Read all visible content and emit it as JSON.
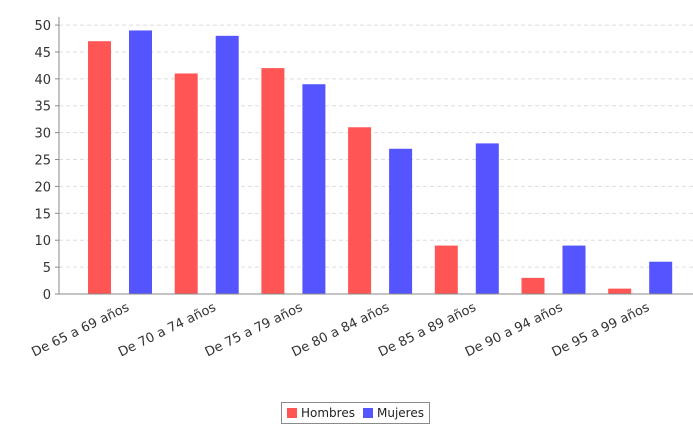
{
  "chart_data": {
    "type": "bar",
    "categories": [
      "De 65 a 69 años",
      "De 70 a 74 años",
      "De 75 a 79 años",
      "De 80 a 84 años",
      "De 85 a 89 años",
      "De 90 a 94 años",
      "De 95 a 99 años"
    ],
    "series": [
      {
        "name": "Hombres",
        "color": "#ff5555",
        "values": [
          47,
          41,
          42,
          31,
          9,
          3,
          1
        ]
      },
      {
        "name": "Mujeres",
        "color": "#5555ff",
        "values": [
          49,
          48,
          39,
          27,
          28,
          9,
          6
        ]
      }
    ],
    "yticks": [
      0,
      5,
      10,
      15,
      20,
      25,
      30,
      35,
      40,
      45,
      50
    ],
    "ylim": [
      0,
      51.5
    ],
    "grid": true,
    "legend_position": "bottom-center"
  }
}
